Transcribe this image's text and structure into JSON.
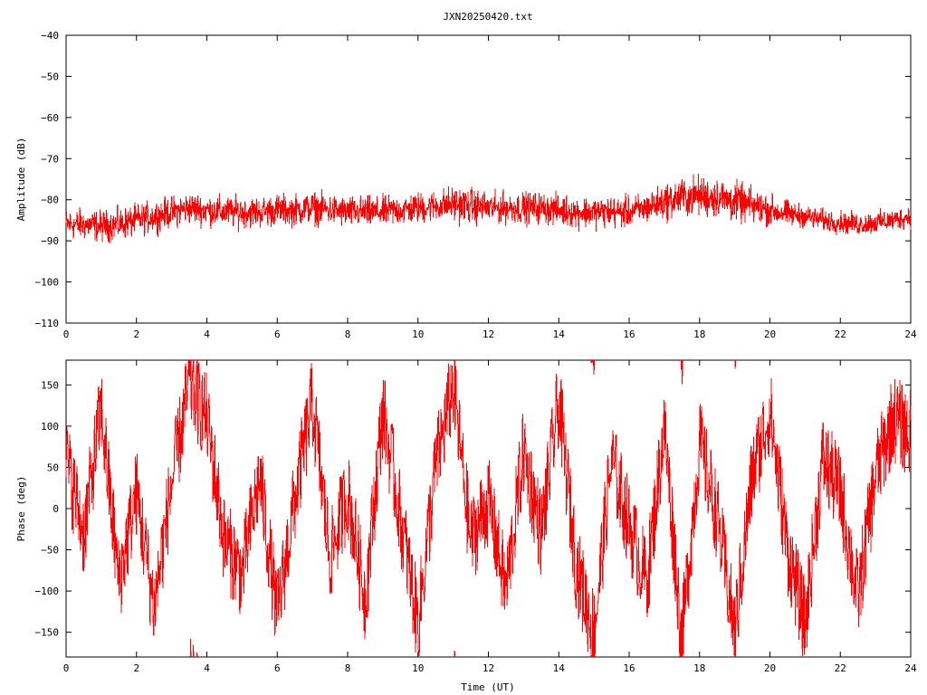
{
  "title": "JXN20250420.txt",
  "colors": {
    "trace": "#ff0000",
    "axes": "#000000",
    "background": "#ffffff"
  },
  "chart_data": [
    {
      "type": "line",
      "ylabel": "Amplitude (dB)",
      "xlabel": "",
      "xlim": [
        0,
        24
      ],
      "ylim": [
        -110,
        -40
      ],
      "x_ticks": [
        0,
        2,
        4,
        6,
        8,
        10,
        12,
        14,
        16,
        18,
        20,
        22,
        24
      ],
      "y_ticks": [
        -110,
        -100,
        -90,
        -80,
        -70,
        -60,
        -50,
        -40
      ],
      "y_tick_labels": [
        "−110",
        "−100",
        "−90",
        "−80",
        "−70",
        "−60",
        "−50",
        "−40"
      ],
      "grid": false,
      "legend": "none",
      "series": [
        {
          "color": "#ff0000",
          "x": [
            0,
            0.5,
            1,
            1.5,
            2,
            2.5,
            3,
            3.5,
            4,
            4.5,
            5,
            5.5,
            6,
            6.5,
            7,
            7.5,
            8,
            8.5,
            9,
            9.5,
            10,
            10.5,
            11,
            11.5,
            12,
            12.5,
            13,
            13.5,
            14,
            14.5,
            15,
            15.5,
            16,
            16.5,
            17,
            17.5,
            18,
            18.5,
            19,
            19.5,
            20,
            20.5,
            21,
            21.5,
            22,
            22.5,
            23,
            23.5,
            24
          ],
          "center": [
            -86,
            -86,
            -86.5,
            -86,
            -85,
            -84,
            -83,
            -82,
            -82.5,
            -83,
            -83,
            -83,
            -82.5,
            -82.5,
            -82,
            -82.5,
            -83,
            -83,
            -83,
            -82.5,
            -82,
            -81.5,
            -81,
            -81.5,
            -82,
            -82,
            -82,
            -82,
            -82.5,
            -83,
            -83,
            -83,
            -83,
            -82,
            -80.5,
            -79.5,
            -79,
            -79.5,
            -80.5,
            -81.5,
            -82.5,
            -83.5,
            -84,
            -85,
            -85.5,
            -86,
            -85.5,
            -85,
            -84
          ],
          "spread": [
            3.5,
            3.5,
            3.5,
            3.5,
            3.5,
            3.5,
            3.5,
            3.5,
            3.5,
            3.5,
            3.5,
            3.5,
            3.5,
            3.5,
            3.5,
            3.5,
            3.5,
            3.5,
            3.5,
            3.5,
            3.5,
            3.5,
            4,
            4,
            3.5,
            3.5,
            3.5,
            3.5,
            3.5,
            3.5,
            3.5,
            3.5,
            3.5,
            3.5,
            4,
            4.5,
            4.5,
            4.5,
            4.5,
            4,
            3.5,
            3,
            2.5,
            2.5,
            2.5,
            2.5,
            2.5,
            2.5,
            2.5
          ]
        }
      ]
    },
    {
      "type": "line",
      "ylabel": "Phase (deg)",
      "xlabel": "Time (UT)",
      "xlim": [
        0,
        24
      ],
      "ylim": [
        -180,
        180
      ],
      "x_ticks": [
        0,
        2,
        4,
        6,
        8,
        10,
        12,
        14,
        16,
        18,
        20,
        22,
        24
      ],
      "y_ticks": [
        -150,
        -100,
        -50,
        0,
        50,
        100,
        150
      ],
      "y_tick_labels": [
        "−150",
        "−100",
        "−50",
        "0",
        "50",
        "100",
        "150"
      ],
      "grid": false,
      "legend": "none",
      "series": [
        {
          "color": "#ff0000",
          "x": [
            0,
            0.5,
            1,
            1.5,
            2,
            2.5,
            3,
            3.5,
            4,
            4.5,
            5,
            5.5,
            6,
            6.5,
            7,
            7.5,
            8,
            8.5,
            9,
            9.5,
            10,
            10.5,
            11,
            11.5,
            12,
            12.5,
            13,
            13.5,
            14,
            14.5,
            15,
            15.5,
            16,
            16.5,
            17,
            17.5,
            18,
            18.5,
            19,
            19.5,
            20,
            20.5,
            21,
            21.5,
            22,
            22.5,
            23,
            23.5,
            24
          ],
          "y": [
            60,
            -30,
            120,
            -90,
            20,
            -120,
            30,
            150,
            110,
            -40,
            -80,
            40,
            -130,
            10,
            130,
            -60,
            20,
            -110,
            120,
            -10,
            -140,
            50,
            150,
            -40,
            10,
            -100,
            70,
            -30,
            130,
            -70,
            -150,
            60,
            -20,
            -90,
            100,
            -160,
            80,
            -10,
            -150,
            40,
            120,
            -50,
            -140,
            60,
            20,
            -110,
            40,
            110,
            90
          ]
        }
      ]
    }
  ]
}
